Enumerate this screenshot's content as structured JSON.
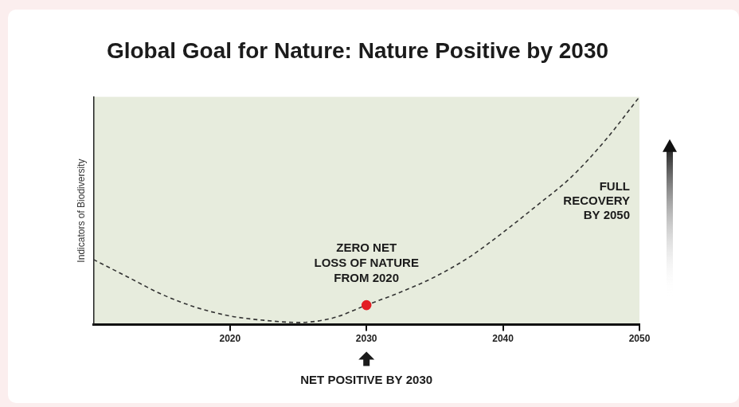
{
  "chart_data": {
    "type": "line",
    "title": "Global Goal for Nature: Nature Positive by 2030",
    "y_label": "Indicators of Biodiversity",
    "annotations": [
      "ZERO NET\nLOSS OF NATURE\nFROM 2020",
      "FULL\nRECOVERY\nBY 2050",
      "NET POSITIVE BY 2030"
    ],
    "x": [
      2010,
      2012.5,
      2015,
      2017.5,
      2020,
      2022.5,
      2025,
      2027.5,
      2030,
      2032.5,
      2035,
      2037.5,
      2040,
      2042.5,
      2045,
      2047.5,
      2050
    ],
    "series": [
      {
        "color": "#333333",
        "line_style": "dashed",
        "values": [
          25,
          17,
          9,
          3,
          -1,
          -3,
          -4,
          -2,
          4,
          10,
          17,
          26,
          37.5,
          50,
          63,
          80,
          100
        ]
      },
      {
        "type": "scatter",
        "marker": "circle",
        "color": "#e31e24",
        "x": [
          2030
        ],
        "values": [
          4
        ]
      }
    ],
    "xlim": [
      2010,
      2050
    ],
    "xticks": [
      2020,
      2030,
      2040,
      2050
    ],
    "ylim": [
      -5,
      100
    ],
    "grid": false,
    "tick_labels": "x"
  }
}
